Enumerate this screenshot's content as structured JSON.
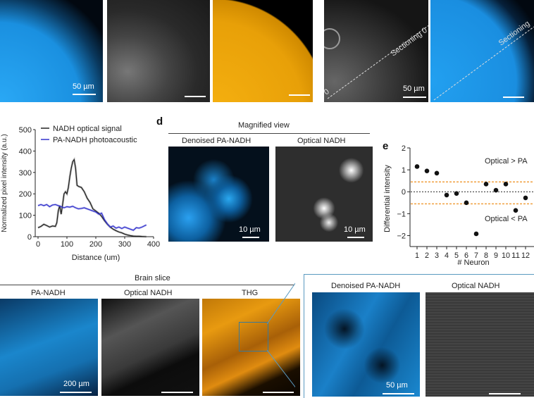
{
  "top_row": {
    "panels": [
      {
        "name": "pa-nadh",
        "scale": "50 µm"
      },
      {
        "name": "optical-nadh",
        "scale": ""
      },
      {
        "name": "thg",
        "scale": ""
      },
      {
        "name": "optical-sectioning",
        "scale": "50 µm",
        "line_label": "Sectioning 0",
        "line_start": "0"
      },
      {
        "name": "pa-sectioning",
        "scale": "",
        "line_label": "Sectioning"
      }
    ]
  },
  "panel_d": {
    "letter": "d",
    "title": "Magnified view",
    "images": [
      {
        "label": "Denoised PA-NADH",
        "scale": "10 µm"
      },
      {
        "label": "Optical NADH",
        "scale": "10 µm"
      }
    ]
  },
  "panel_e": {
    "letter": "e"
  },
  "brain_slice": {
    "title": "Brain slice",
    "images": [
      {
        "label": "PA-NADH",
        "scale": "200 µm"
      },
      {
        "label": "Optical NADH",
        "scale": ""
      },
      {
        "label": "THG",
        "scale": ""
      }
    ],
    "zoom_images": [
      {
        "label": "Denoised PA-NADH",
        "scale": "50 µm"
      },
      {
        "label": "Optical NADH",
        "scale": ""
      }
    ]
  },
  "colors": {
    "pa": "#1ea0f0",
    "thg": "#f0a010",
    "optical_line": "#222222",
    "pa_line": "#3333cc",
    "threshold": "#f0a040"
  },
  "chart_data": [
    {
      "type": "line",
      "title": "",
      "xlabel": "Distance (um)",
      "ylabel": "Normalized pixel intensity (a.u.)",
      "xlim": [
        0,
        400
      ],
      "ylim": [
        0,
        500
      ],
      "xticks": [
        0,
        100,
        200,
        300,
        400
      ],
      "yticks": [
        0,
        100,
        200,
        300,
        400,
        500
      ],
      "legend_position": "top",
      "series": [
        {
          "name": "NADH optical signal",
          "color": "#222222",
          "x": [
            0,
            10,
            20,
            30,
            40,
            50,
            60,
            65,
            70,
            75,
            80,
            85,
            90,
            95,
            100,
            105,
            110,
            115,
            120,
            125,
            130,
            135,
            140,
            150,
            160,
            170,
            180,
            190,
            200,
            210,
            220,
            230,
            240,
            250,
            260,
            270,
            280,
            290,
            300,
            310,
            320,
            330,
            340,
            350,
            360,
            375
          ],
          "y": [
            42,
            48,
            58,
            52,
            45,
            50,
            48,
            65,
            120,
            145,
            105,
            150,
            200,
            210,
            200,
            230,
            280,
            320,
            350,
            360,
            320,
            240,
            235,
            230,
            210,
            180,
            160,
            130,
            120,
            110,
            95,
            75,
            58,
            45,
            35,
            28,
            22,
            18,
            12,
            8,
            5,
            3,
            2,
            2,
            1,
            0
          ]
        },
        {
          "name": "PA-NADH photoacoustic",
          "color": "#3333cc",
          "x": [
            0,
            10,
            20,
            30,
            40,
            50,
            60,
            70,
            80,
            90,
            100,
            110,
            120,
            130,
            140,
            150,
            160,
            170,
            180,
            190,
            200,
            210,
            220,
            230,
            240,
            250,
            260,
            270,
            280,
            290,
            300,
            310,
            320,
            330,
            340,
            350,
            360,
            375
          ],
          "y": [
            145,
            150,
            145,
            150,
            140,
            148,
            150,
            145,
            140,
            135,
            140,
            138,
            142,
            135,
            130,
            132,
            135,
            130,
            125,
            120,
            115,
            105,
            110,
            80,
            60,
            45,
            50,
            40,
            45,
            38,
            45,
            40,
            35,
            30,
            42,
            40,
            45,
            55
          ]
        }
      ]
    },
    {
      "type": "scatter",
      "title": "",
      "xlabel": "# Neuron",
      "ylabel": "Differential intensity",
      "xlim": [
        0.5,
        12.5
      ],
      "ylim": [
        -2.5,
        2
      ],
      "xticks": [
        1,
        2,
        3,
        4,
        5,
        6,
        7,
        8,
        9,
        10,
        11,
        12
      ],
      "yticks": [
        -2,
        -1,
        0,
        1,
        2
      ],
      "x": [
        1,
        2,
        3,
        4,
        5,
        6,
        7,
        8,
        9,
        10,
        11,
        12
      ],
      "y": [
        1.15,
        0.95,
        0.85,
        -0.15,
        -0.08,
        -0.5,
        -1.92,
        0.35,
        0.07,
        0.35,
        -0.85,
        -0.28
      ],
      "thresholds": [
        0.45,
        -0.55
      ],
      "annotations": [
        "Optical > PA",
        "Optical < PA"
      ]
    }
  ]
}
